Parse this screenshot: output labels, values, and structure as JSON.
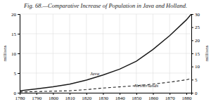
{
  "chart_data": {
    "type": "line",
    "title": "Fig. 68.—Comparative Increase of Population in Java and Holland.",
    "x": [
      1780,
      1790,
      1800,
      1810,
      1820,
      1830,
      1840,
      1850,
      1860,
      1870,
      1880,
      1883
    ],
    "series": [
      {
        "color": "#1a1a1a",
        "line_style": "solid",
        "values": [
          0.5,
          1.0,
          1.5,
          2.2,
          3.2,
          4.5,
          6.0,
          8.0,
          11.0,
          14.5,
          18.5,
          20.0
        ]
      },
      {
        "color": "#1a1a1a",
        "line_style": "dashed",
        "values": [
          0.2,
          0.3,
          0.4,
          0.5,
          0.8,
          1.2,
          1.5,
          1.8,
          2.2,
          2.7,
          3.3,
          3.6
        ]
      }
    ],
    "xlim": [
      1780,
      1883
    ],
    "xticks": [
      1780,
      1790,
      1800,
      1810,
      1820,
      1830,
      1840,
      1850,
      1860,
      1870,
      1880
    ],
    "ylim": [
      0,
      20
    ],
    "yticks": [
      0,
      5,
      10,
      15,
      20
    ],
    "y2lim": [
      0,
      30
    ],
    "y2ticks": [
      0,
      5,
      10,
      15,
      20,
      25,
      30
    ],
    "ylabel": "millions",
    "y2label": "millions",
    "grid": true,
    "annotations": [
      {
        "text": "Java",
        "x": 1825,
        "y": 4.2
      },
      {
        "text": "Netherlands",
        "x": 1856,
        "y": 1.2
      }
    ]
  }
}
